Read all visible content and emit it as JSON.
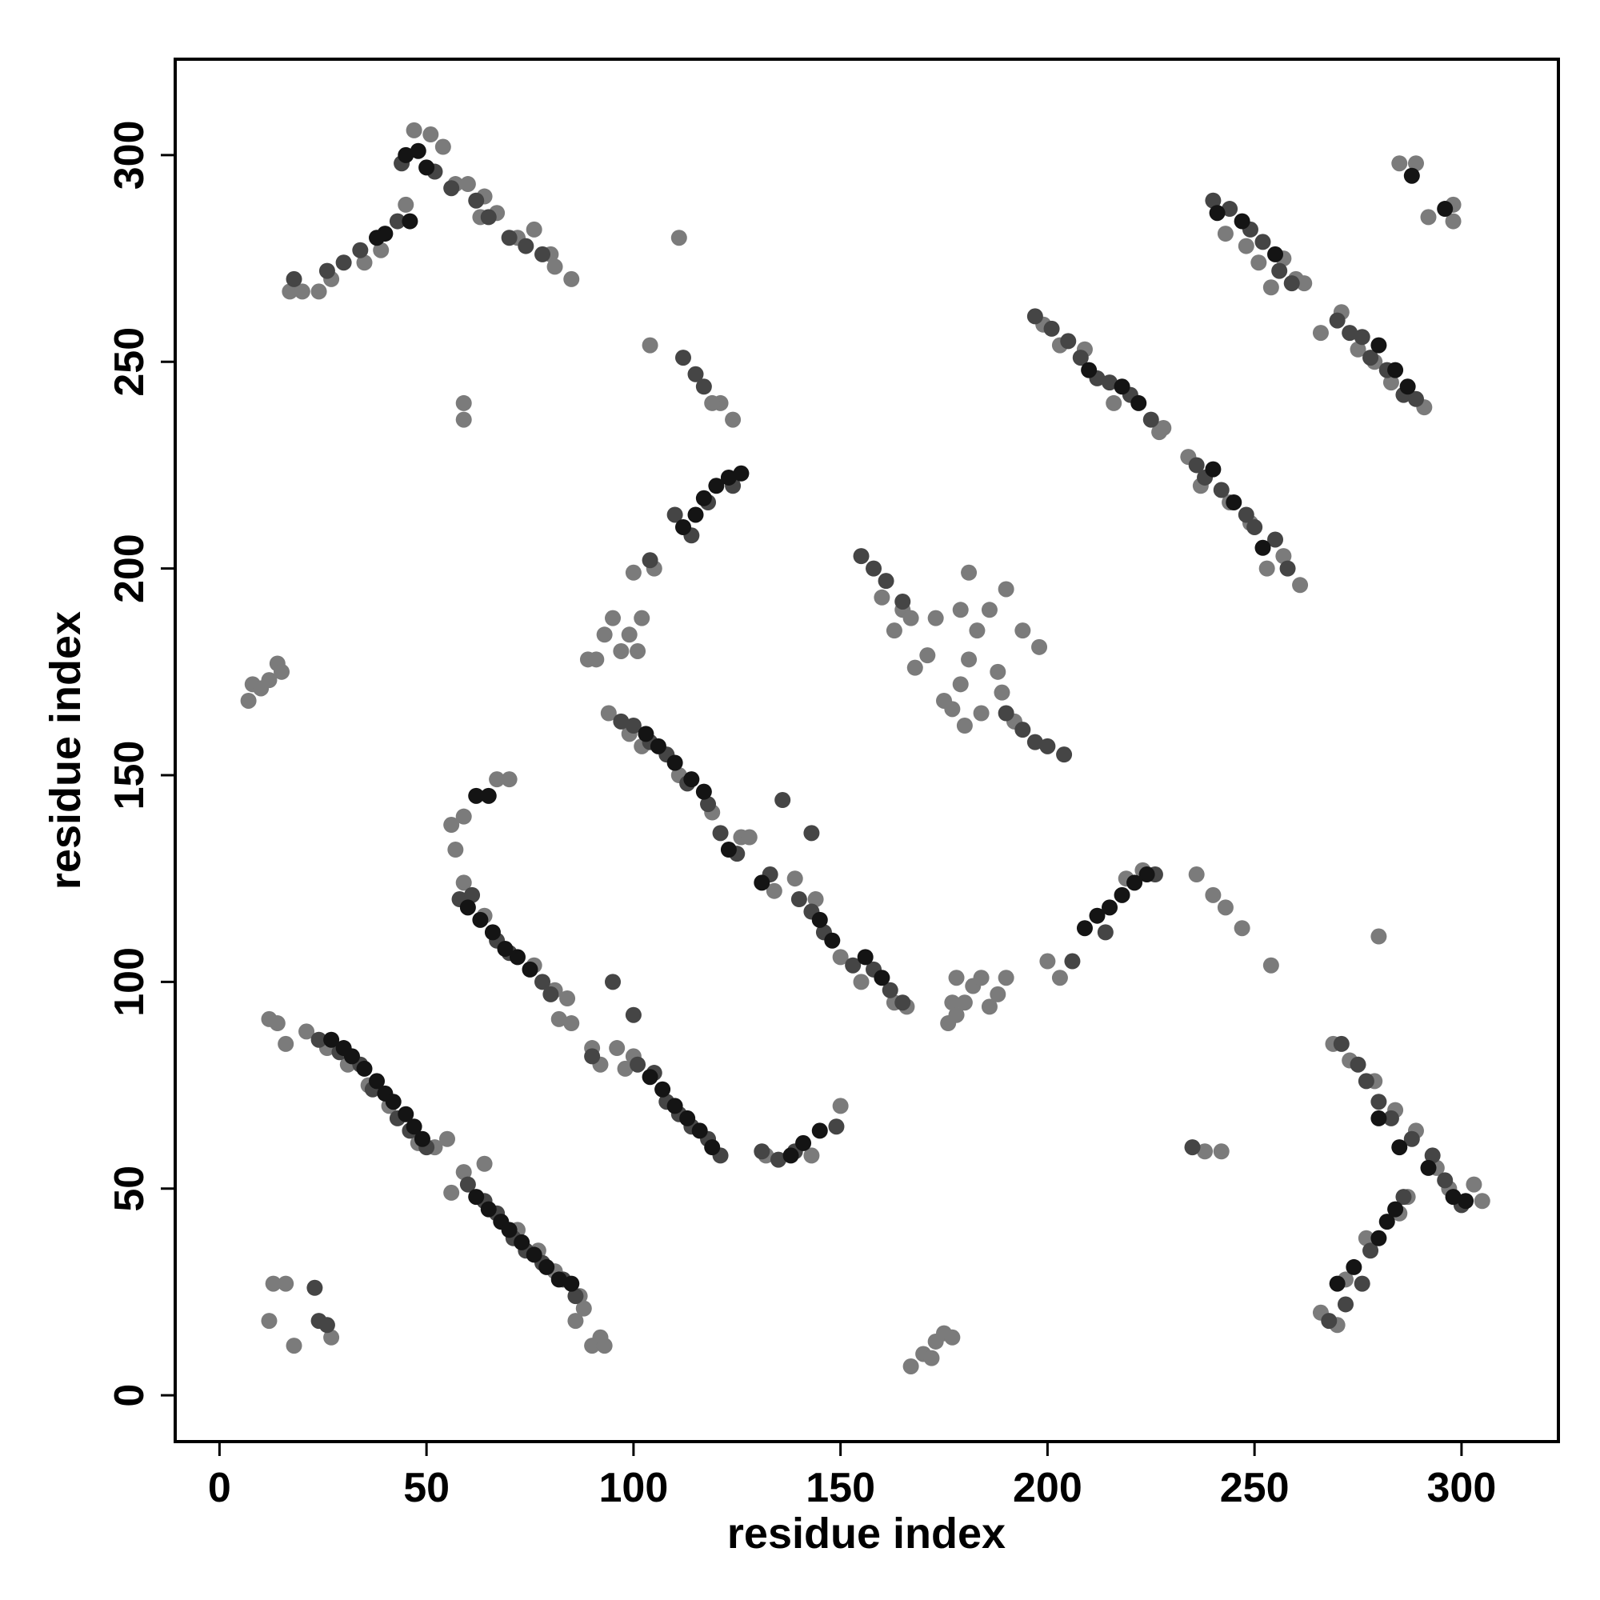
{
  "chart_data": {
    "type": "scatter",
    "x_label": "residue index",
    "y_label": "residue index",
    "xlim": [
      -10.7,
      323.4
    ],
    "ylim": [
      -11.2,
      323.2
    ],
    "xticks": [
      0,
      50,
      100,
      150,
      200,
      250,
      300
    ],
    "yticks": [
      0,
      50,
      100,
      150,
      200,
      250,
      300
    ],
    "series": [
      {
        "color": "#7b7b7b",
        "x": [
          12,
          14,
          16,
          21,
          26,
          31,
          36,
          41,
          48,
          52,
          55,
          56,
          59,
          64,
          72,
          77,
          81,
          87,
          88,
          86,
          90,
          92,
          93,
          59,
          64,
          76,
          81,
          84,
          82,
          85,
          90,
          92,
          96,
          98,
          100,
          56,
          57,
          59,
          67,
          70,
          94,
          99,
          102,
          111,
          119,
          126,
          128,
          134,
          139,
          144,
          150,
          155,
          163,
          166,
          100,
          105,
          93,
          95,
          97,
          89,
          91,
          99,
          102,
          101,
          160,
          163,
          165,
          167,
          168,
          171,
          173,
          175,
          177,
          179,
          181,
          183,
          184,
          186,
          188,
          189,
          190,
          192,
          194,
          198,
          181,
          179,
          180,
          199,
          203,
          209,
          216,
          227,
          228,
          234,
          237,
          244,
          249,
          253,
          257,
          261,
          243,
          248,
          251,
          254,
          257,
          260,
          262,
          266,
          271,
          275,
          279,
          283,
          291,
          200,
          203,
          219,
          223,
          269,
          273,
          279,
          284,
          289,
          294,
          297,
          303,
          305,
          266,
          270,
          272,
          277,
          285,
          287,
          17,
          20,
          24,
          27,
          35,
          39,
          45,
          47,
          51,
          54,
          57,
          60,
          64,
          63,
          67,
          72,
          76,
          80,
          81,
          85,
          104,
          121,
          124,
          119,
          132,
          150,
          143,
          7,
          8,
          10,
          12,
          14,
          15,
          59,
          59,
          111,
          12,
          18,
          27,
          13,
          16,
          167,
          170,
          172,
          173,
          175,
          177,
          176,
          177,
          178,
          182,
          184,
          186,
          188,
          190,
          178,
          180,
          236,
          240,
          243,
          247,
          254,
          280,
          238,
          242,
          285,
          289,
          298,
          298,
          292
        ],
        "y": [
          91,
          90,
          85,
          88,
          84,
          80,
          75,
          70,
          61,
          60,
          62,
          49,
          54,
          56,
          40,
          35,
          30,
          24,
          21,
          18,
          12,
          14,
          12,
          124,
          116,
          104,
          98,
          96,
          91,
          90,
          84,
          80,
          84,
          79,
          82,
          138,
          132,
          140,
          149,
          149,
          165,
          160,
          157,
          150,
          141,
          135,
          135,
          122,
          125,
          120,
          106,
          100,
          95,
          94,
          199,
          200,
          184,
          188,
          180,
          178,
          178,
          184,
          188,
          180,
          193,
          185,
          190,
          188,
          176,
          179,
          188,
          168,
          166,
          172,
          178,
          185,
          165,
          190,
          175,
          170,
          195,
          163,
          185,
          181,
          199,
          190,
          162,
          259,
          254,
          253,
          240,
          233,
          234,
          227,
          220,
          216,
          211,
          200,
          203,
          196,
          281,
          278,
          274,
          268,
          275,
          270,
          269,
          257,
          262,
          253,
          250,
          245,
          239,
          105,
          101,
          125,
          127,
          85,
          81,
          76,
          69,
          64,
          55,
          50,
          51,
          47,
          20,
          17,
          28,
          38,
          44,
          48,
          267,
          267,
          267,
          270,
          274,
          277,
          288,
          306,
          305,
          302,
          293,
          293,
          290,
          285,
          286,
          280,
          282,
          276,
          273,
          270,
          254,
          240,
          236,
          240,
          58,
          70,
          58,
          168,
          172,
          171,
          173,
          177,
          175,
          240,
          236,
          280,
          18,
          12,
          14,
          27,
          27,
          7,
          10,
          9,
          13,
          15,
          14,
          90,
          95,
          101,
          99,
          101,
          94,
          97,
          101,
          92,
          95,
          126,
          121,
          118,
          113,
          104,
          111,
          59,
          59,
          298,
          298,
          288,
          284,
          285
        ]
      },
      {
        "color": "#454545",
        "x": [
          24,
          29,
          34,
          37,
          43,
          46,
          50,
          60,
          64,
          67,
          71,
          74,
          78,
          83,
          86,
          58,
          61,
          67,
          70,
          78,
          80,
          101,
          105,
          108,
          111,
          114,
          118,
          121,
          97,
          100,
          104,
          108,
          113,
          118,
          121,
          125,
          133,
          136,
          140,
          143,
          146,
          153,
          158,
          162,
          165,
          110,
          114,
          118,
          124,
          104,
          155,
          158,
          161,
          165,
          190,
          194,
          197,
          200,
          204,
          197,
          201,
          205,
          208,
          212,
          215,
          220,
          225,
          236,
          238,
          242,
          248,
          250,
          255,
          258,
          240,
          244,
          249,
          252,
          256,
          259,
          270,
          273,
          276,
          278,
          282,
          286,
          289,
          206,
          214,
          226,
          271,
          275,
          277,
          280,
          283,
          288,
          293,
          296,
          300,
          268,
          272,
          276,
          278,
          286,
          18,
          26,
          30,
          34,
          43,
          44,
          52,
          56,
          62,
          65,
          70,
          74,
          78,
          131,
          135,
          139,
          149,
          112,
          115,
          117,
          23,
          24,
          26,
          143,
          235,
          90,
          95,
          100
        ],
        "y": [
          86,
          83,
          80,
          74,
          67,
          64,
          60,
          51,
          47,
          44,
          38,
          35,
          32,
          28,
          24,
          120,
          121,
          110,
          107,
          100,
          97,
          80,
          78,
          71,
          68,
          65,
          62,
          58,
          163,
          162,
          158,
          155,
          148,
          143,
          136,
          131,
          126,
          144,
          120,
          117,
          112,
          104,
          103,
          98,
          95,
          213,
          208,
          216,
          220,
          202,
          203,
          200,
          197,
          192,
          165,
          161,
          158,
          157,
          155,
          261,
          258,
          255,
          251,
          246,
          245,
          242,
          236,
          225,
          222,
          219,
          213,
          210,
          207,
          200,
          289,
          287,
          282,
          279,
          272,
          269,
          260,
          257,
          256,
          251,
          248,
          242,
          241,
          105,
          112,
          126,
          85,
          80,
          76,
          71,
          67,
          62,
          58,
          52,
          46,
          18,
          22,
          27,
          35,
          48,
          270,
          272,
          274,
          277,
          284,
          298,
          296,
          292,
          289,
          285,
          280,
          278,
          276,
          59,
          57,
          59,
          65,
          251,
          247,
          244,
          26,
          18,
          17,
          136,
          60,
          82,
          100,
          92
        ]
      },
      {
        "color": "#141414",
        "x": [
          27,
          30,
          32,
          35,
          38,
          40,
          42,
          45,
          47,
          49,
          62,
          65,
          68,
          70,
          73,
          76,
          79,
          82,
          85,
          60,
          63,
          66,
          69,
          72,
          75,
          104,
          107,
          110,
          113,
          116,
          119,
          62,
          65,
          103,
          106,
          110,
          114,
          117,
          123,
          131,
          145,
          148,
          156,
          160,
          112,
          115,
          117,
          120,
          123,
          126,
          209,
          212,
          215,
          218,
          221,
          224,
          280,
          282,
          284,
          270,
          274,
          280,
          285,
          292,
          298,
          301,
          45,
          48,
          50,
          46,
          40,
          38,
          138,
          141,
          145,
          210,
          218,
          222,
          240,
          245,
          252,
          241,
          247,
          255,
          280,
          284,
          287,
          288,
          296
        ],
        "y": [
          86,
          84,
          82,
          79,
          76,
          73,
          71,
          68,
          65,
          62,
          48,
          45,
          42,
          40,
          37,
          34,
          31,
          28,
          27,
          118,
          115,
          112,
          108,
          106,
          103,
          77,
          74,
          70,
          67,
          64,
          60,
          145,
          145,
          160,
          157,
          153,
          149,
          146,
          132,
          124,
          115,
          110,
          106,
          101,
          210,
          213,
          217,
          220,
          222,
          223,
          113,
          116,
          118,
          121,
          124,
          126,
          38,
          42,
          45,
          27,
          31,
          67,
          60,
          55,
          48,
          47,
          300,
          301,
          297,
          284,
          281,
          280,
          58,
          61,
          64,
          248,
          244,
          240,
          224,
          216,
          205,
          286,
          284,
          276,
          254,
          248,
          244,
          295,
          287
        ]
      }
    ]
  }
}
